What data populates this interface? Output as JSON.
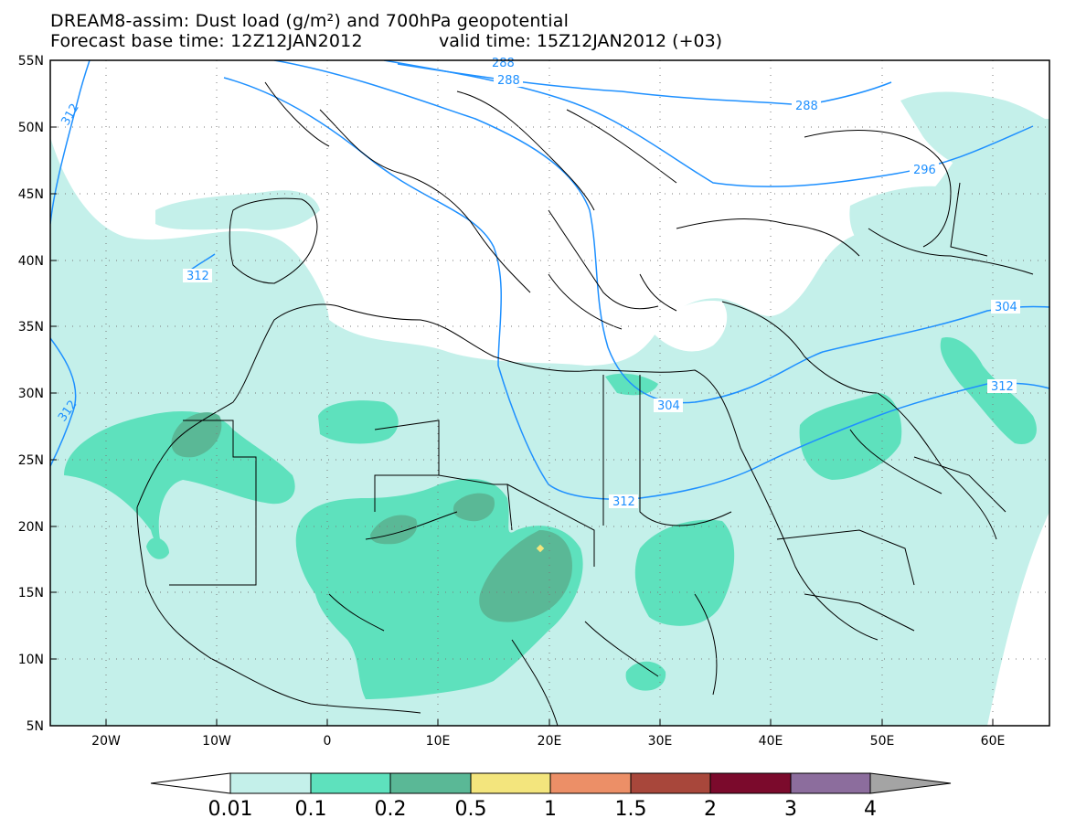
{
  "title": {
    "line1": "DREAM8-assim: Dust load (g/m²) and 700hPa geopotential",
    "line2_base": "Forecast base time: 12Z12JAN2012",
    "line2_valid": "valid time: 15Z12JAN2012 (+03)"
  },
  "axes": {
    "lat_labels": [
      "55N",
      "50N",
      "45N",
      "40N",
      "35N",
      "30N",
      "25N",
      "20N",
      "15N",
      "10N",
      "5N"
    ],
    "lon_labels": [
      "20W",
      "10W",
      "0",
      "10E",
      "20E",
      "30E",
      "40E",
      "50E",
      "60E"
    ]
  },
  "contours": {
    "labels": [
      "288",
      "288",
      "288",
      "296",
      "304",
      "304",
      "312",
      "312",
      "312",
      "312",
      "312"
    ]
  },
  "colorbar": {
    "labels": [
      "0.01",
      "0.1",
      "0.2",
      "0.5",
      "1",
      "1.5",
      "2",
      "3",
      "4"
    ],
    "colors": [
      "#ffffff",
      "#c4f0ea",
      "#5ee1bd",
      "#5ab896",
      "#f3e57d",
      "#ec8f67",
      "#a8473b",
      "#7b0a2c",
      "#8c6d9d",
      "#a4a4a4"
    ]
  },
  "colors": {
    "dust_light": "#c4f0ea",
    "dust_mid": "#5ee1bd",
    "dust_dark": "#5ab896",
    "contour": "#1e90ff"
  }
}
